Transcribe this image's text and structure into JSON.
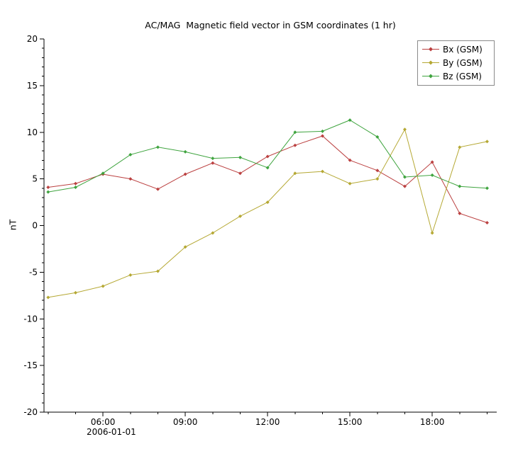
{
  "chart_data": {
    "type": "line",
    "title": "AC/MAG  Magnetic field vector in GSM coordinates (1 hr)",
    "ylabel": "nT",
    "x_date_label": "2006-01-01",
    "ylim": [
      -20,
      20
    ],
    "xlim_hours": [
      3.85,
      20.35
    ],
    "y_major_ticks": [
      -20,
      -15,
      -10,
      -5,
      0,
      5,
      10,
      15,
      20
    ],
    "x_major_ticks": [
      6,
      9,
      12,
      15,
      18
    ],
    "x_tick_labels": [
      "06:00",
      "09:00",
      "12:00",
      "15:00",
      "18:00"
    ],
    "grid": false,
    "legend_position": "top-right",
    "x_hours": [
      4,
      5,
      6,
      7,
      8,
      9,
      10,
      11,
      12,
      13,
      14,
      15,
      16,
      17,
      18,
      19,
      20
    ],
    "series": [
      {
        "name": "Bx (GSM)",
        "color": "#bb4040",
        "values": [
          4.1,
          4.5,
          5.5,
          5.0,
          3.9,
          5.5,
          6.7,
          5.6,
          7.4,
          8.6,
          9.6,
          7.0,
          5.9,
          4.2,
          6.8,
          1.3,
          0.3
        ]
      },
      {
        "name": "By (GSM)",
        "color": "#b5a833",
        "values": [
          -7.7,
          -7.2,
          -6.5,
          -5.3,
          -4.9,
          -2.3,
          -0.8,
          1.0,
          2.5,
          5.6,
          5.8,
          4.5,
          5.0,
          10.3,
          -0.8,
          8.4,
          9.0
        ]
      },
      {
        "name": "Bz (GSM)",
        "color": "#3fa43f",
        "values": [
          3.6,
          4.1,
          5.6,
          7.6,
          8.4,
          7.9,
          7.2,
          7.3,
          6.2,
          10.0,
          10.1,
          11.3,
          9.5,
          5.2,
          5.4,
          4.2,
          4.0
        ]
      }
    ]
  }
}
